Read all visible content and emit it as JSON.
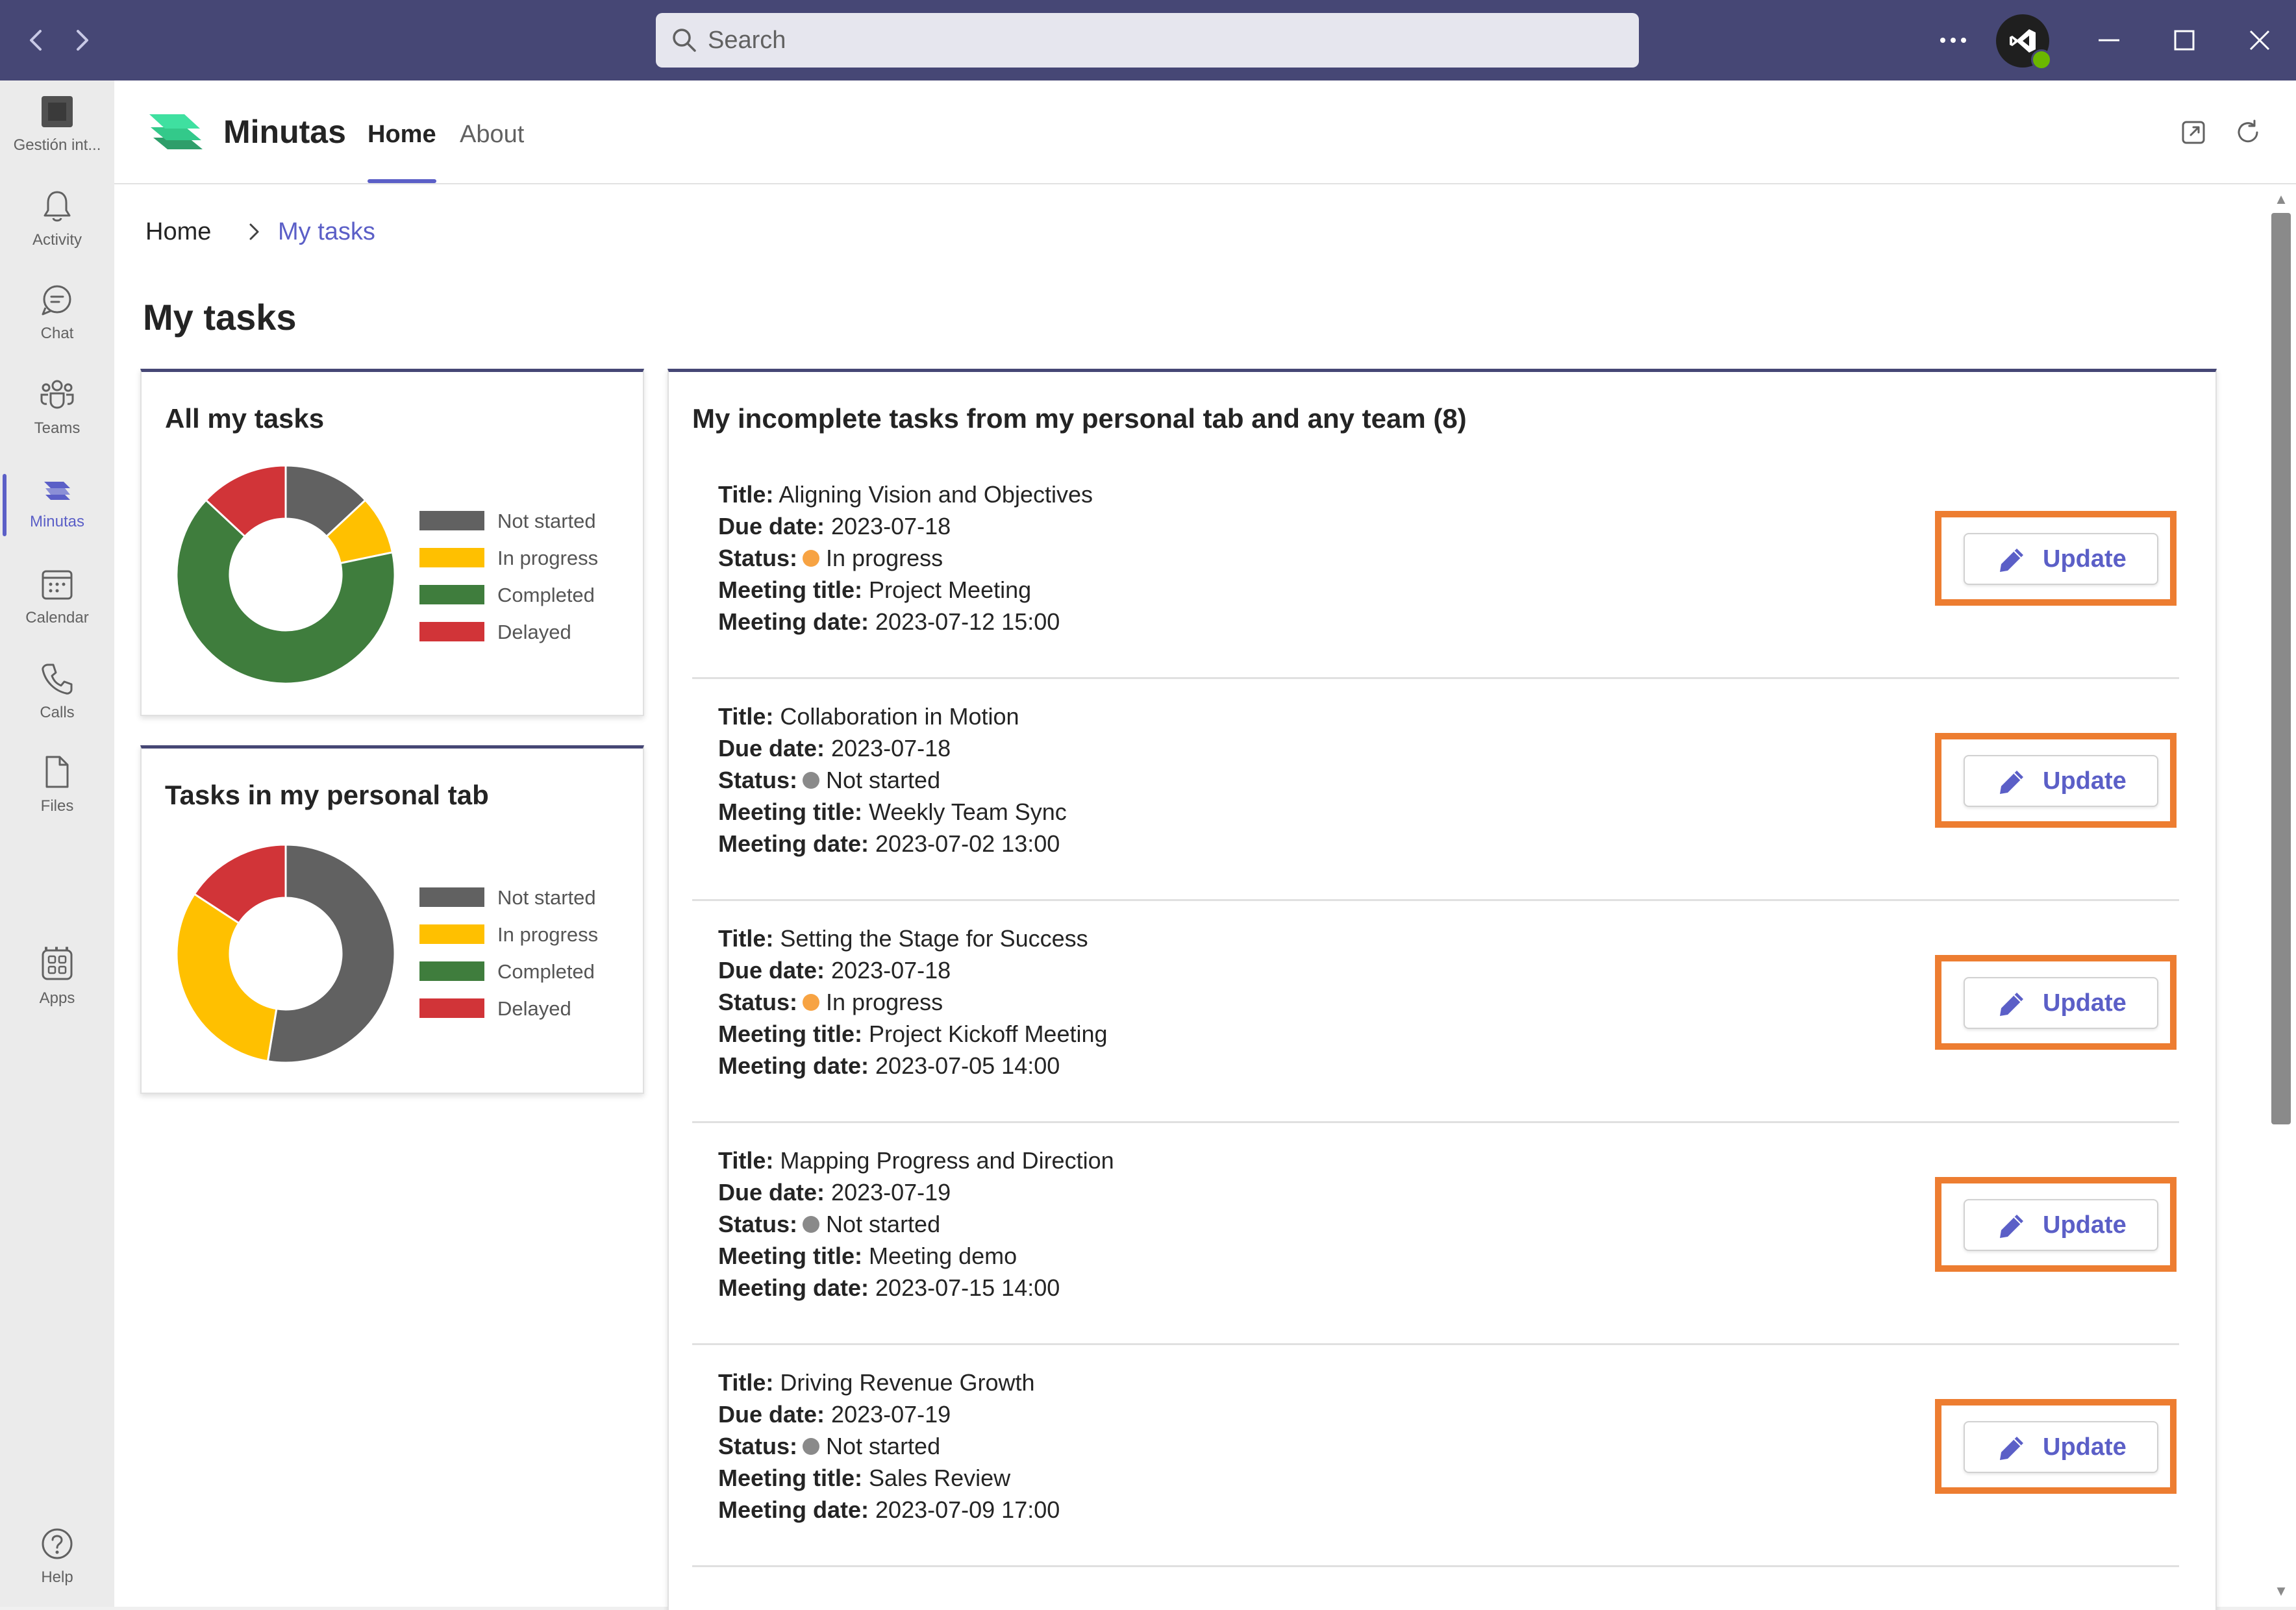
{
  "colors": {
    "titlebar": "#464775",
    "brand": "#5b5fc7",
    "highlight": "#ed7d31",
    "not_started": "#616161",
    "in_progress": "#ffc000",
    "completed": "#3f7d3d",
    "delayed": "#d13438",
    "dot_in_progress": "#f7a343",
    "dot_not_started": "#8a8a8a"
  },
  "titlebar": {
    "search_placeholder": "Search"
  },
  "rail": {
    "items": [
      {
        "label": "Gestión int...",
        "icon": "team-icon"
      },
      {
        "label": "Activity",
        "icon": "bell-icon"
      },
      {
        "label": "Chat",
        "icon": "chat-icon"
      },
      {
        "label": "Teams",
        "icon": "teams-icon"
      },
      {
        "label": "Minutas",
        "icon": "minutas-icon"
      },
      {
        "label": "Calendar",
        "icon": "calendar-icon"
      },
      {
        "label": "Calls",
        "icon": "phone-icon"
      },
      {
        "label": "Files",
        "icon": "file-icon"
      },
      {
        "label": "Apps",
        "icon": "apps-icon"
      },
      {
        "label": "Help",
        "icon": "help-icon"
      }
    ],
    "more": "···"
  },
  "app": {
    "name": "Minutas",
    "tabs": [
      {
        "label": "Home"
      },
      {
        "label": "About"
      }
    ]
  },
  "breadcrumb": {
    "home": "Home",
    "current": "My tasks"
  },
  "page_title": "My tasks",
  "cards": {
    "all_tasks": {
      "title": "All my tasks",
      "chart_data": {
        "type": "pie",
        "categories": [
          "Not started",
          "In progress",
          "Completed",
          "Delayed"
        ],
        "values": [
          3,
          2,
          15,
          3
        ]
      }
    },
    "personal_tab": {
      "title": "Tasks in my personal tab",
      "chart_data": {
        "type": "pie",
        "categories": [
          "Not started",
          "In progress",
          "Completed",
          "Delayed"
        ],
        "values": [
          5,
          3,
          0,
          1.5
        ]
      }
    }
  },
  "legend": [
    "Not started",
    "In progress",
    "Completed",
    "Delayed"
  ],
  "tasks_panel": {
    "heading": "My incomplete tasks from my personal tab and any team (8)",
    "labels": {
      "title": "Title:",
      "due": "Due date:",
      "status": "Status:",
      "meeting_title": "Meeting title:",
      "meeting_date": "Meeting date:"
    },
    "update_label": "Update",
    "tasks": [
      {
        "title": "Aligning Vision and Objectives",
        "due": "2023-07-18",
        "status": "In progress",
        "meeting_title": "Project Meeting",
        "meeting_date": "2023-07-12 15:00"
      },
      {
        "title": "Collaboration in Motion",
        "due": "2023-07-18",
        "status": "Not started",
        "meeting_title": "Weekly Team Sync",
        "meeting_date": "2023-07-02 13:00"
      },
      {
        "title": "Setting the Stage for Success",
        "due": "2023-07-18",
        "status": "In progress",
        "meeting_title": "Project Kickoff Meeting",
        "meeting_date": "2023-07-05 14:00"
      },
      {
        "title": "Mapping Progress and Direction",
        "due": "2023-07-19",
        "status": "Not started",
        "meeting_title": "Meeting demo",
        "meeting_date": "2023-07-15 14:00"
      },
      {
        "title": "Driving Revenue Growth",
        "due": "2023-07-19",
        "status": "Not started",
        "meeting_title": "Sales Review",
        "meeting_date": "2023-07-09 17:00"
      }
    ]
  }
}
